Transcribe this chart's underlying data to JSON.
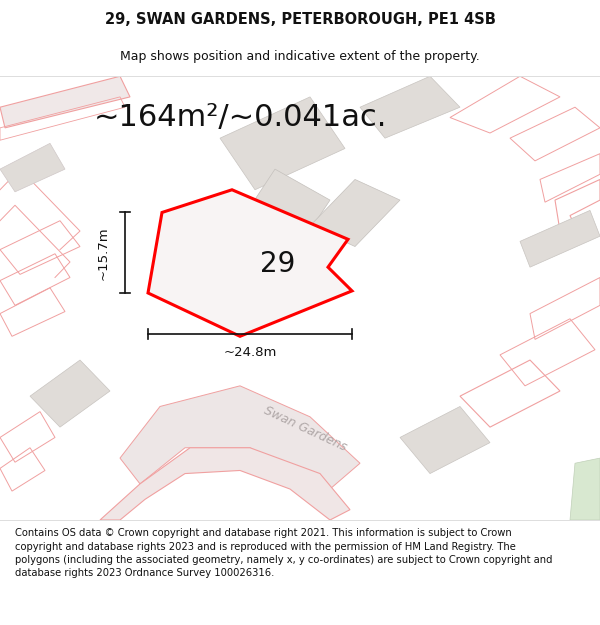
{
  "title_line1": "29, SWAN GARDENS, PETERBOROUGH, PE1 4SB",
  "title_line2": "Map shows position and indicative extent of the property.",
  "area_text": "~164m²/~0.041ac.",
  "width_label": "~24.8m",
  "height_label": "~15.7m",
  "plot_number": "29",
  "footer_text": "Contains OS data © Crown copyright and database right 2021. This information is subject to Crown copyright and database rights 2023 and is reproduced with the permission of HM Land Registry. The polygons (including the associated geometry, namely x, y co-ordinates) are subject to Crown copyright and database rights 2023 Ordnance Survey 100026316.",
  "bg_color": "#f9f5f5",
  "map_bg": "#f8f4f4",
  "plot_fill": "#ffffff",
  "plot_edge": "#ff0000",
  "pink_edge": "#f0a0a0",
  "building_fill": "#e0dcd8",
  "road_fill": "#f0e8e8",
  "dim_color": "#111111",
  "text_color": "#111111",
  "swan_label_color": "#b0a8a8",
  "title_fontsize": 10.5,
  "subtitle_fontsize": 9,
  "area_fontsize": 22,
  "label_fontsize": 9.5,
  "plot_num_fontsize": 20,
  "footer_fontsize": 7.2,
  "plot_edge_lw": 2.2
}
